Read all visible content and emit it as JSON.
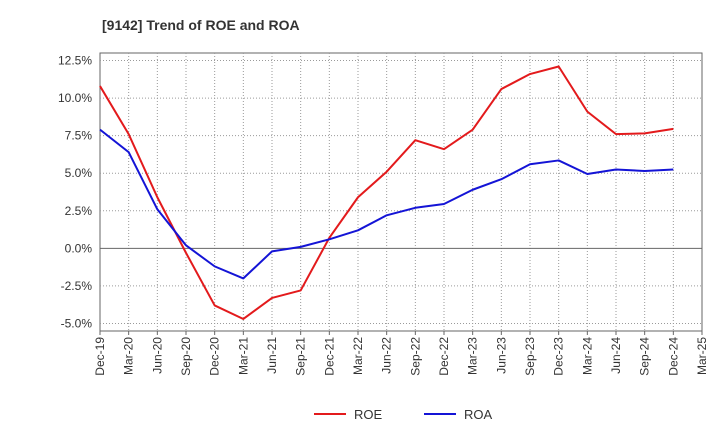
{
  "chart_data": {
    "type": "line",
    "title": "[9142]  Trend of ROE and ROA",
    "xlabel": "",
    "ylabel": "",
    "x": [
      "Dec-19",
      "Mar-20",
      "Jun-20",
      "Sep-20",
      "Dec-20",
      "Mar-21",
      "Jun-21",
      "Sep-21",
      "Dec-21",
      "Mar-22",
      "Jun-22",
      "Sep-22",
      "Dec-22",
      "Mar-23",
      "Jun-23",
      "Sep-23",
      "Dec-23",
      "Mar-24",
      "Jun-24",
      "Sep-24",
      "Dec-24",
      "Mar-25"
    ],
    "y_ticks": [
      "12.5%",
      "10.0%",
      "7.5%",
      "5.0%",
      "2.5%",
      "0.0%",
      "-2.5%",
      "-5.0%"
    ],
    "ylim": [
      -5.5,
      13.0
    ],
    "grid": true,
    "legend_position": "bottom-center",
    "series": [
      {
        "name": "ROE",
        "color": "#e31a1c",
        "values": [
          10.8,
          7.6,
          3.4,
          -0.3,
          -3.8,
          -4.7,
          -3.3,
          -2.8,
          0.7,
          3.4,
          5.1,
          7.2,
          6.6,
          7.9,
          10.6,
          11.6,
          12.1,
          9.1,
          7.6,
          7.65,
          7.95,
          null
        ]
      },
      {
        "name": "ROA",
        "color": "#1414d6",
        "values": [
          7.9,
          6.4,
          2.6,
          0.2,
          -1.2,
          -2.0,
          -0.2,
          0.1,
          0.6,
          1.2,
          2.2,
          2.7,
          2.95,
          3.9,
          4.6,
          5.6,
          5.85,
          4.95,
          5.25,
          5.15,
          5.25,
          null
        ]
      }
    ]
  }
}
